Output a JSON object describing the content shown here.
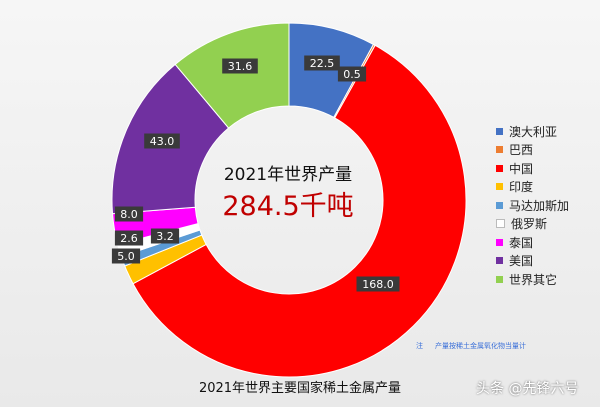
{
  "chart_data": {
    "type": "pie",
    "style": "donut",
    "title": "2021年世界主要国家稀土金属产量",
    "center_label": "2021年世界产量",
    "center_value": "284.5千吨",
    "legend_position": "right",
    "slices": [
      {
        "name": "澳大利亚",
        "value": 22.5,
        "label": "22.5",
        "color": "#4472c4"
      },
      {
        "name": "巴西",
        "value": 0.5,
        "label": "0.5",
        "color": "#ed7d31"
      },
      {
        "name": "中国",
        "value": 168.0,
        "label": "168.0",
        "color": "#ff0000"
      },
      {
        "name": "印度",
        "value": 5.0,
        "label": "5.0",
        "color": "#ffc000"
      },
      {
        "name": "马达加斯加",
        "value": 2.6,
        "label": "2.6",
        "color": "#5b9bd5"
      },
      {
        "name": "俄罗斯",
        "value": 3.2,
        "label": "3.2",
        "color": "#ffffff"
      },
      {
        "name": "泰国",
        "value": 8.0,
        "label": "8.0",
        "color": "#ff00ff"
      },
      {
        "name": "美国",
        "value": 43.0,
        "label": "43.0",
        "color": "#7030a0"
      },
      {
        "name": "世界其它",
        "value": 31.6,
        "label": "31.6",
        "color": "#92d050"
      }
    ],
    "footnote": {
      "prefix": "注",
      "text": "产量按稀土金属氧化物当量计"
    }
  },
  "watermark": "头条 @先锋六号"
}
